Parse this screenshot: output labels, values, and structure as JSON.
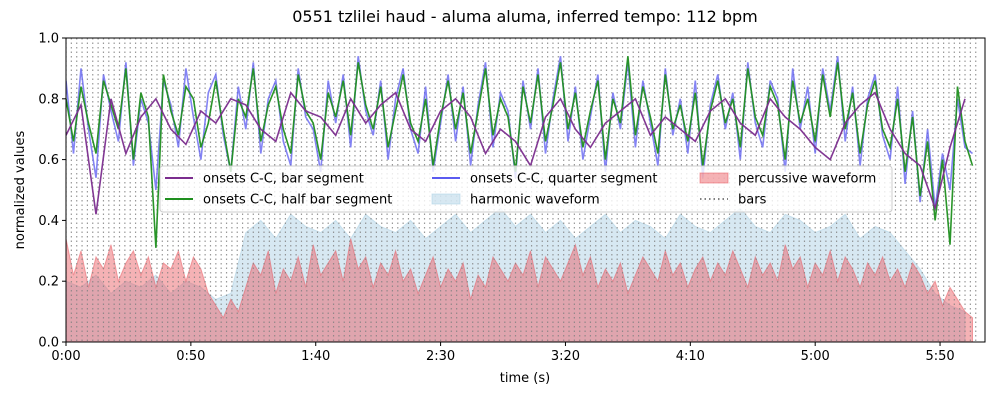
{
  "chart_data": {
    "type": "line",
    "title": "0551 tzlilei haud - aluma aluma, inferred tempo: 112 bpm",
    "x_label": "time (s)",
    "y_label": "normalized values",
    "xlim": [
      0,
      368
    ],
    "ylim": [
      0,
      1
    ],
    "xticks": [
      {
        "value": 0,
        "label": "0:00"
      },
      {
        "value": 50,
        "label": "0:50"
      },
      {
        "value": 100,
        "label": "1:40"
      },
      {
        "value": 150,
        "label": "2:30"
      },
      {
        "value": 200,
        "label": "3:20"
      },
      {
        "value": 250,
        "label": "4:10"
      },
      {
        "value": 300,
        "label": "5:00"
      },
      {
        "value": 350,
        "label": "5:50"
      }
    ],
    "yticks": [
      {
        "value": 0,
        "label": "0.0"
      },
      0.2,
      0.4,
      0.6,
      0.8,
      {
        "value": 1,
        "label": "1.0"
      }
    ],
    "x": [
      0,
      3,
      6,
      9,
      12,
      15,
      18,
      21,
      24,
      27,
      30,
      33,
      36,
      39,
      42,
      45,
      48,
      51,
      54,
      57,
      60,
      63,
      66,
      69,
      72,
      75,
      78,
      81,
      84,
      87,
      90,
      93,
      96,
      99,
      102,
      105,
      108,
      111,
      114,
      117,
      120,
      123,
      126,
      129,
      132,
      135,
      138,
      141,
      144,
      147,
      150,
      153,
      156,
      159,
      162,
      165,
      168,
      171,
      174,
      177,
      180,
      183,
      186,
      189,
      192,
      195,
      198,
      201,
      204,
      207,
      210,
      213,
      216,
      219,
      222,
      225,
      228,
      231,
      234,
      237,
      240,
      243,
      246,
      249,
      252,
      255,
      258,
      261,
      264,
      267,
      270,
      273,
      276,
      279,
      282,
      285,
      288,
      291,
      294,
      297,
      300,
      303,
      306,
      309,
      312,
      315,
      318,
      321,
      324,
      327,
      330,
      333,
      336,
      339,
      342,
      345,
      348,
      351,
      354,
      357,
      360,
      363
    ],
    "series": [
      {
        "name": "harmonic waveform",
        "kind": "area",
        "color": "#a6cde2",
        "x": [
          0,
          6,
          12,
          18,
          24,
          30,
          36,
          42,
          48,
          54,
          60,
          66,
          72,
          78,
          84,
          90,
          96,
          102,
          108,
          114,
          120,
          126,
          132,
          138,
          144,
          150,
          156,
          162,
          168,
          174,
          180,
          186,
          192,
          198,
          204,
          210,
          216,
          222,
          228,
          234,
          240,
          246,
          252,
          258,
          264,
          270,
          276,
          282,
          288,
          294,
          300,
          306,
          312,
          318,
          324,
          330,
          336,
          342,
          348,
          354,
          360
        ],
        "values": [
          0.2,
          0.18,
          0.22,
          0.16,
          0.2,
          0.18,
          0.22,
          0.16,
          0.2,
          0.18,
          0.14,
          0.16,
          0.36,
          0.4,
          0.34,
          0.42,
          0.38,
          0.36,
          0.4,
          0.34,
          0.42,
          0.38,
          0.36,
          0.4,
          0.34,
          0.38,
          0.42,
          0.36,
          0.4,
          0.44,
          0.38,
          0.42,
          0.36,
          0.4,
          0.34,
          0.38,
          0.42,
          0.36,
          0.4,
          0.38,
          0.34,
          0.42,
          0.38,
          0.36,
          0.4,
          0.44,
          0.38,
          0.36,
          0.42,
          0.4,
          0.36,
          0.38,
          0.42,
          0.34,
          0.38,
          0.36,
          0.3,
          0.24,
          0.16,
          0.12,
          0.1
        ]
      },
      {
        "name": "percussive waveform",
        "kind": "area",
        "color": "#e8545c",
        "values": [
          0.34,
          0.22,
          0.3,
          0.18,
          0.28,
          0.24,
          0.32,
          0.2,
          0.26,
          0.3,
          0.22,
          0.28,
          0.18,
          0.26,
          0.24,
          0.3,
          0.2,
          0.28,
          0.24,
          0.16,
          0.12,
          0.08,
          0.14,
          0.1,
          0.18,
          0.26,
          0.22,
          0.3,
          0.16,
          0.24,
          0.2,
          0.28,
          0.18,
          0.32,
          0.22,
          0.26,
          0.3,
          0.2,
          0.34,
          0.24,
          0.28,
          0.18,
          0.26,
          0.22,
          0.3,
          0.2,
          0.24,
          0.16,
          0.22,
          0.28,
          0.18,
          0.24,
          0.2,
          0.26,
          0.14,
          0.22,
          0.18,
          0.28,
          0.24,
          0.2,
          0.26,
          0.22,
          0.3,
          0.18,
          0.28,
          0.24,
          0.2,
          0.26,
          0.32,
          0.22,
          0.28,
          0.18,
          0.24,
          0.2,
          0.26,
          0.16,
          0.22,
          0.28,
          0.24,
          0.2,
          0.3,
          0.22,
          0.26,
          0.18,
          0.24,
          0.28,
          0.2,
          0.26,
          0.22,
          0.3,
          0.24,
          0.18,
          0.28,
          0.22,
          0.26,
          0.2,
          0.32,
          0.24,
          0.28,
          0.18,
          0.26,
          0.22,
          0.3,
          0.2,
          0.28,
          0.24,
          0.18,
          0.26,
          0.22,
          0.28,
          0.2,
          0.24,
          0.18,
          0.26,
          0.22,
          0.16,
          0.2,
          0.12,
          0.18,
          0.14,
          0.1,
          0.08
        ]
      },
      {
        "name": "bars",
        "kind": "vlines",
        "color": "#808080",
        "x": [
          0,
          2.14,
          4.29,
          6.43,
          8.57,
          10.71,
          12.86,
          15,
          17.14,
          19.29,
          21.43,
          23.57,
          25.71,
          27.86,
          30,
          32.14,
          34.29,
          36.43,
          38.57,
          40.71,
          42.86,
          45,
          47.14,
          49.29,
          51.43,
          53.57,
          55.71,
          57.86,
          60,
          62.14,
          64.29,
          66.43,
          68.57,
          70.71,
          72.86,
          75,
          77.14,
          79.29,
          81.43,
          83.57,
          85.71,
          87.86,
          90,
          92.14,
          94.29,
          96.43,
          98.57,
          100.71,
          102.86,
          105,
          107.14,
          109.29,
          111.43,
          113.57,
          115.71,
          117.86,
          120,
          122.14,
          124.29,
          126.43,
          128.57,
          130.71,
          132.86,
          135,
          137.14,
          139.29,
          141.43,
          143.57,
          145.71,
          147.86,
          150,
          152.14,
          154.29,
          156.43,
          158.57,
          160.71,
          162.86,
          165,
          167.14,
          169.29,
          171.43,
          173.57,
          175.71,
          177.86,
          180,
          182.14,
          184.29,
          186.43,
          188.57,
          190.71,
          192.86,
          195,
          197.14,
          199.29,
          201.43,
          203.57,
          205.71,
          207.86,
          210,
          212.14,
          214.29,
          216.43,
          218.57,
          220.71,
          222.86,
          225,
          227.14,
          229.29,
          231.43,
          233.57,
          235.71,
          237.86,
          240,
          242.14,
          244.29,
          246.43,
          248.57,
          250.71,
          252.86,
          255,
          257.14,
          259.29,
          261.43,
          263.57,
          265.71,
          267.86,
          270,
          272.14,
          274.29,
          276.43,
          278.57,
          280.71,
          282.86,
          285,
          287.14,
          289.29,
          291.43,
          293.57,
          295.71,
          297.86,
          300,
          302.14,
          304.29,
          306.43,
          308.57,
          310.71,
          312.86,
          315,
          317.14,
          319.29,
          321.43,
          323.57,
          325.71,
          327.86,
          330,
          332.14,
          334.29,
          336.43,
          338.57,
          340.71,
          342.86,
          345,
          347.14,
          349.29,
          351.43,
          353.57,
          355.71,
          357.86,
          360,
          362.14,
          364.29
        ]
      },
      {
        "name": "onsets C-C, quarter segment",
        "kind": "line",
        "color": "#5b5bf0",
        "values": [
          0.86,
          0.62,
          0.9,
          0.7,
          0.54,
          0.88,
          0.76,
          0.66,
          0.92,
          0.58,
          0.8,
          0.72,
          0.5,
          0.86,
          0.78,
          0.64,
          0.9,
          0.74,
          0.6,
          0.82,
          0.88,
          0.68,
          0.56,
          0.84,
          0.7,
          0.92,
          0.62,
          0.8,
          0.86,
          0.66,
          0.58,
          0.9,
          0.74,
          0.7,
          0.56,
          0.86,
          0.72,
          0.88,
          0.64,
          0.94,
          0.76,
          0.68,
          0.86,
          0.6,
          0.8,
          0.9,
          0.7,
          0.62,
          0.84,
          0.56,
          0.72,
          0.88,
          0.66,
          0.84,
          0.58,
          0.78,
          0.92,
          0.64,
          0.82,
          0.76,
          0.54,
          0.86,
          0.7,
          0.9,
          0.62,
          0.8,
          0.94,
          0.66,
          0.84,
          0.6,
          0.74,
          0.88,
          0.56,
          0.82,
          0.7,
          0.92,
          0.64,
          0.86,
          0.72,
          0.58,
          0.9,
          0.68,
          0.8,
          0.62,
          0.86,
          0.54,
          0.78,
          0.88,
          0.7,
          0.82,
          0.6,
          0.92,
          0.72,
          0.64,
          0.86,
          0.8,
          0.56,
          0.9,
          0.7,
          0.84,
          0.62,
          0.9,
          0.76,
          0.94,
          0.66,
          0.84,
          0.58,
          0.8,
          0.88,
          0.68,
          0.6,
          0.84,
          0.52,
          0.76,
          0.46,
          0.7,
          0.44,
          0.62,
          0.5,
          0.8,
          0.64,
          0.62
        ]
      },
      {
        "name": "onsets C-C, half bar segment",
        "kind": "line",
        "color": "#1f8f1f",
        "values": [
          0.8,
          0.66,
          0.84,
          0.72,
          0.62,
          0.86,
          0.78,
          0.7,
          0.9,
          0.6,
          0.82,
          0.74,
          0.31,
          0.88,
          0.76,
          0.68,
          0.84,
          0.8,
          0.64,
          0.72,
          0.86,
          0.7,
          0.56,
          0.8,
          0.74,
          0.9,
          0.66,
          0.78,
          0.84,
          0.7,
          0.62,
          0.88,
          0.76,
          0.72,
          0.6,
          0.82,
          0.74,
          0.86,
          0.68,
          0.92,
          0.78,
          0.7,
          0.84,
          0.64,
          0.76,
          0.88,
          0.72,
          0.66,
          0.8,
          0.58,
          0.74,
          0.86,
          0.7,
          0.82,
          0.62,
          0.76,
          0.9,
          0.68,
          0.8,
          0.74,
          0.56,
          0.84,
          0.72,
          0.88,
          0.66,
          0.78,
          0.92,
          0.7,
          0.82,
          0.64,
          0.76,
          0.86,
          0.6,
          0.8,
          0.72,
          0.94,
          0.68,
          0.84,
          0.74,
          0.62,
          0.88,
          0.7,
          0.78,
          0.66,
          0.82,
          0.58,
          0.76,
          0.86,
          0.72,
          0.8,
          0.64,
          0.9,
          0.74,
          0.68,
          0.84,
          0.78,
          0.6,
          0.86,
          0.72,
          0.8,
          0.66,
          0.88,
          0.74,
          0.92,
          0.7,
          0.82,
          0.62,
          0.78,
          0.86,
          0.7,
          0.64,
          0.8,
          0.56,
          0.74,
          0.48,
          0.66,
          0.4,
          0.6,
          0.32,
          0.84,
          0.66,
          0.58
        ]
      },
      {
        "name": "onsets C-C, bar segment",
        "kind": "line",
        "color": "#7b2d8e",
        "x": [
          0,
          6,
          12,
          18,
          24,
          30,
          36,
          42,
          48,
          54,
          60,
          66,
          72,
          78,
          84,
          90,
          96,
          102,
          108,
          114,
          120,
          126,
          132,
          138,
          144,
          150,
          156,
          162,
          168,
          174,
          180,
          186,
          192,
          198,
          204,
          210,
          216,
          222,
          228,
          234,
          240,
          246,
          252,
          258,
          264,
          270,
          276,
          282,
          288,
          294,
          300,
          306,
          312,
          318,
          324,
          330,
          336,
          342,
          348,
          354,
          360
        ],
        "values": [
          0.68,
          0.78,
          0.42,
          0.8,
          0.62,
          0.74,
          0.8,
          0.7,
          0.65,
          0.76,
          0.72,
          0.8,
          0.78,
          0.7,
          0.66,
          0.82,
          0.76,
          0.74,
          0.68,
          0.8,
          0.72,
          0.78,
          0.82,
          0.7,
          0.66,
          0.76,
          0.8,
          0.74,
          0.62,
          0.7,
          0.66,
          0.58,
          0.74,
          0.8,
          0.7,
          0.64,
          0.72,
          0.76,
          0.8,
          0.68,
          0.74,
          0.7,
          0.66,
          0.76,
          0.8,
          0.72,
          0.68,
          0.8,
          0.74,
          0.7,
          0.64,
          0.6,
          0.72,
          0.78,
          0.82,
          0.7,
          0.62,
          0.58,
          0.44,
          0.64,
          0.8
        ]
      }
    ],
    "legend_order": [
      5,
      4,
      3,
      0,
      1,
      2
    ]
  }
}
